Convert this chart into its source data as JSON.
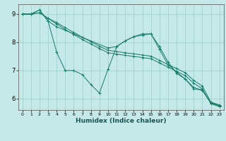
{
  "xlabel": "Humidex (Indice chaleur)",
  "background_color": "#c5e8e8",
  "grid_color": "#a8d4d4",
  "line_color": "#1a7a6a",
  "xlim": [
    -0.5,
    23.5
  ],
  "ylim": [
    5.6,
    9.35
  ],
  "yticks": [
    6,
    7,
    8,
    9
  ],
  "xticks": [
    0,
    1,
    2,
    3,
    4,
    5,
    6,
    7,
    8,
    9,
    10,
    11,
    12,
    13,
    14,
    15,
    16,
    17,
    18,
    19,
    20,
    21,
    22,
    23
  ],
  "line1_x": [
    0,
    1,
    2,
    3,
    4,
    5,
    6,
    7,
    8,
    9,
    10,
    11,
    12,
    13,
    14,
    15,
    16,
    17,
    18,
    19,
    20,
    21,
    22,
    23
  ],
  "line1_y": [
    9.0,
    9.0,
    9.15,
    8.75,
    7.65,
    7.0,
    7.0,
    6.85,
    6.5,
    6.2,
    7.05,
    7.85,
    8.05,
    8.2,
    8.25,
    8.3,
    7.75,
    7.2,
    6.95,
    6.7,
    6.4,
    6.3,
    5.85,
    5.75
  ],
  "line2_x": [
    0,
    1,
    2,
    3,
    4,
    10,
    11,
    12,
    13,
    14,
    15,
    16,
    17,
    18,
    19,
    20,
    21,
    22,
    23
  ],
  "line2_y": [
    9.0,
    9.0,
    9.15,
    8.75,
    8.55,
    7.8,
    7.85,
    8.05,
    8.2,
    8.3,
    8.3,
    7.85,
    7.3,
    6.9,
    6.7,
    6.35,
    6.3,
    5.85,
    5.75
  ],
  "line3_x": [
    0,
    1,
    2,
    3,
    4,
    5,
    6,
    7,
    8,
    9,
    10,
    11,
    12,
    13,
    14,
    15,
    16,
    17,
    18,
    19,
    20,
    21,
    22,
    23
  ],
  "line3_y": [
    9.0,
    9.0,
    9.05,
    8.85,
    8.7,
    8.52,
    8.35,
    8.18,
    8.02,
    7.86,
    7.72,
    7.67,
    7.63,
    7.59,
    7.55,
    7.51,
    7.36,
    7.21,
    7.07,
    6.92,
    6.65,
    6.45,
    5.88,
    5.78
  ],
  "line4_x": [
    0,
    1,
    2,
    3,
    4,
    5,
    6,
    7,
    8,
    9,
    10,
    11,
    12,
    13,
    14,
    15,
    16,
    17,
    18,
    19,
    20,
    21,
    22,
    23
  ],
  "line4_y": [
    9.0,
    9.0,
    9.05,
    8.85,
    8.65,
    8.45,
    8.28,
    8.1,
    7.94,
    7.78,
    7.63,
    7.58,
    7.54,
    7.5,
    7.46,
    7.42,
    7.27,
    7.12,
    6.97,
    6.82,
    6.55,
    6.35,
    5.82,
    5.72
  ]
}
